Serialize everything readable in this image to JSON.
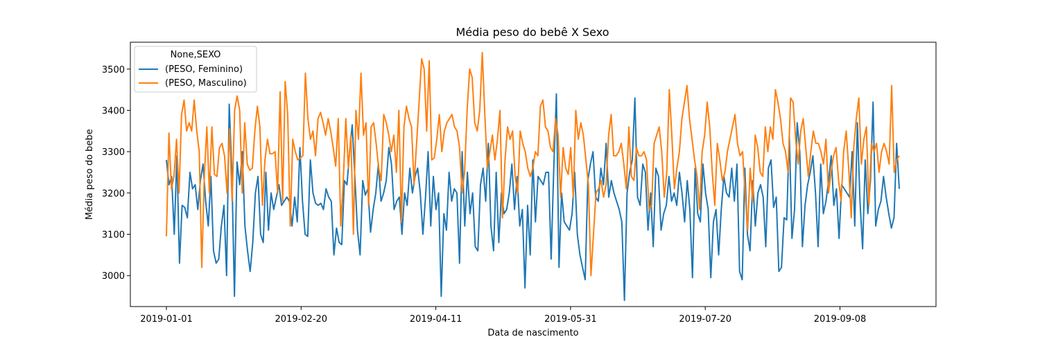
{
  "chart_data": {
    "type": "line",
    "title": "Média peso do bebê X Sexo",
    "xlabel": "Data de nascimento",
    "ylabel": "Média peso do bebe",
    "x_tick_labels": [
      "2019-01-01",
      "2019-02-20",
      "2019-04-11",
      "2019-05-31",
      "2019-07-20",
      "2019-09-08"
    ],
    "x_range": [
      "2019-01-01",
      "2019-09-30"
    ],
    "y_ticks": [
      3000,
      3100,
      3200,
      3300,
      3400,
      3500
    ],
    "ylim": [
      2925,
      3565
    ],
    "grid": false,
    "legend": {
      "title": "None,SEXO",
      "placement": "top-left"
    },
    "series": [
      {
        "name": "(PESO, Feminino)",
        "color": "#1f77b4",
        "values": [
          3280,
          3220,
          3240,
          3100,
          3290,
          3030,
          3170,
          3165,
          3140,
          3250,
          3210,
          3220,
          3160,
          3230,
          3270,
          3180,
          3120,
          3240,
          3060,
          3030,
          3040,
          3120,
          3170,
          3000,
          3415,
          3250,
          2950,
          3275,
          3220,
          3300,
          3120,
          3060,
          3010,
          3080,
          3200,
          3240,
          3100,
          3080,
          3250,
          3110,
          3200,
          3160,
          3190,
          3220,
          3170,
          3180,
          3190,
          3180,
          3120,
          3190,
          3130,
          3310,
          3180,
          3100,
          3095,
          3280,
          3200,
          3175,
          3170,
          3175,
          3160,
          3210,
          3190,
          3180,
          3050,
          3115,
          3080,
          3075,
          3230,
          3220,
          3300,
          3365,
          3240,
          3110,
          3050,
          3230,
          3195,
          3210,
          3105,
          3160,
          3200,
          3270,
          3180,
          3200,
          3230,
          3310,
          3270,
          3160,
          3180,
          3190,
          3100,
          3200,
          3170,
          3260,
          3200,
          3240,
          3260,
          3200,
          3100,
          3190,
          3300,
          3120,
          3240,
          3160,
          3200,
          2950,
          3150,
          3110,
          3250,
          3180,
          3210,
          3200,
          3030,
          3300,
          3120,
          3250,
          3150,
          3200,
          3070,
          3060,
          3220,
          3260,
          3180,
          3320,
          3120,
          3060,
          3250,
          3080,
          3200,
          3150,
          3160,
          3200,
          3270,
          3160,
          3240,
          3120,
          3160,
          2970,
          3170,
          3050,
          3280,
          3130,
          3240,
          3230,
          3220,
          3250,
          3250,
          3040,
          3260,
          3440,
          3020,
          3200,
          3130,
          3120,
          3110,
          3150,
          3250,
          3100,
          3050,
          3020,
          2990,
          3230,
          3270,
          3300,
          3190,
          3180,
          3260,
          3220,
          3320,
          3190,
          3230,
          3200,
          3180,
          3160,
          3130,
          2940,
          3200,
          3250,
          3280,
          3430,
          3190,
          3170,
          3270,
          3250,
          3110,
          3200,
          3070,
          3260,
          3240,
          3110,
          3150,
          3170,
          3240,
          3180,
          3200,
          3170,
          3250,
          3200,
          3130,
          3230,
          3160,
          2995,
          3260,
          3150,
          3130,
          3270,
          3200,
          3160,
          2995,
          3130,
          3160,
          3050,
          3160,
          3240,
          3200,
          3190,
          3260,
          3180,
          3270,
          3010,
          2990,
          3260,
          3100,
          3060,
          3230,
          3120,
          3200,
          3220,
          3190,
          3070,
          3260,
          3280,
          3165,
          3190,
          3010,
          3020,
          3140,
          3135,
          3340,
          3090,
          3160,
          3370,
          3300,
          3070,
          3170,
          3220,
          3250,
          3290,
          3200,
          3070,
          3270,
          3150,
          3180,
          3230,
          3290,
          3170,
          3210,
          3090,
          3220,
          3210,
          3200,
          3190,
          3300,
          3120,
          3370,
          3180,
          3065,
          3280,
          3150,
          3230,
          3420,
          3120,
          3160,
          3180,
          3240,
          3190,
          3150,
          3115,
          3140,
          3320,
          3210
        ]
      },
      {
        "name": "(PESO, Masculino)",
        "color": "#ff7f0e",
        "values": [
          3095,
          3345,
          3210,
          3240,
          3330,
          3200,
          3390,
          3425,
          3350,
          3370,
          3350,
          3425,
          3350,
          3300,
          3020,
          3240,
          3360,
          3200,
          3360,
          3245,
          3240,
          3310,
          3320,
          3290,
          3200,
          3355,
          3180,
          3400,
          3435,
          3400,
          3200,
          3370,
          3270,
          3255,
          3260,
          3350,
          3410,
          3360,
          3170,
          3280,
          3330,
          3295,
          3295,
          3300,
          3200,
          3445,
          3180,
          3470,
          3390,
          3120,
          3330,
          3300,
          3280,
          3285,
          3290,
          3490,
          3380,
          3330,
          3350,
          3290,
          3380,
          3395,
          3370,
          3340,
          3380,
          3350,
          3310,
          3265,
          3380,
          3120,
          3230,
          3380,
          3260,
          3340,
          3100,
          3400,
          3330,
          3490,
          3340,
          3370,
          3170,
          3360,
          3370,
          3320,
          3260,
          3230,
          3390,
          3370,
          3340,
          3300,
          3340,
          3250,
          3400,
          3130,
          3360,
          3410,
          3380,
          3360,
          3220,
          3320,
          3420,
          3525,
          3500,
          3350,
          3520,
          3280,
          3285,
          3330,
          3390,
          3300,
          3350,
          3370,
          3380,
          3390,
          3360,
          3350,
          3310,
          3200,
          3250,
          3400,
          3500,
          3480,
          3370,
          3350,
          3400,
          3540,
          3390,
          3260,
          3300,
          3340,
          3280,
          3330,
          3400,
          3140,
          3280,
          3360,
          3330,
          3350,
          3240,
          3200,
          3350,
          3320,
          3300,
          3260,
          3240,
          3260,
          3300,
          3290,
          3410,
          3425,
          3360,
          3350,
          3310,
          3300,
          3380,
          3340,
          3190,
          3310,
          3260,
          3245,
          3310,
          3190,
          3400,
          3330,
          3370,
          3340,
          3280,
          3220,
          3000,
          3100,
          3200,
          3210,
          3230,
          3190,
          3220,
          3340,
          3390,
          3290,
          3290,
          3300,
          3320,
          3270,
          3210,
          3360,
          3240,
          3230,
          3310,
          3290,
          3290,
          3300,
          3280,
          3160,
          3170,
          3320,
          3340,
          3360,
          3300,
          3190,
          3250,
          3450,
          3340,
          3210,
          3260,
          3300,
          3380,
          3420,
          3460,
          3380,
          3330,
          3280,
          3240,
          3160,
          3300,
          3340,
          3420,
          3360,
          3250,
          3170,
          3320,
          3280,
          3230,
          3250,
          3300,
          3330,
          3360,
          3390,
          3320,
          3290,
          3300,
          3200,
          3110,
          3260,
          3180,
          3340,
          3310,
          3250,
          3240,
          3360,
          3300,
          3360,
          3330,
          3450,
          3420,
          3380,
          3320,
          3300,
          3250,
          3430,
          3420,
          3330,
          3270,
          3350,
          3380,
          3310,
          3240,
          3300,
          3350,
          3320,
          3320,
          3300,
          3270,
          3330,
          3200,
          3250,
          3290,
          3310,
          3230,
          3180,
          3300,
          3350,
          3260,
          3140,
          3310,
          3380,
          3430,
          3270,
          3330,
          3360,
          3170,
          3320,
          3300,
          3320,
          3250,
          3300,
          3320,
          3300,
          3270,
          3460,
          3250,
          3280,
          3290
        ]
      }
    ]
  }
}
